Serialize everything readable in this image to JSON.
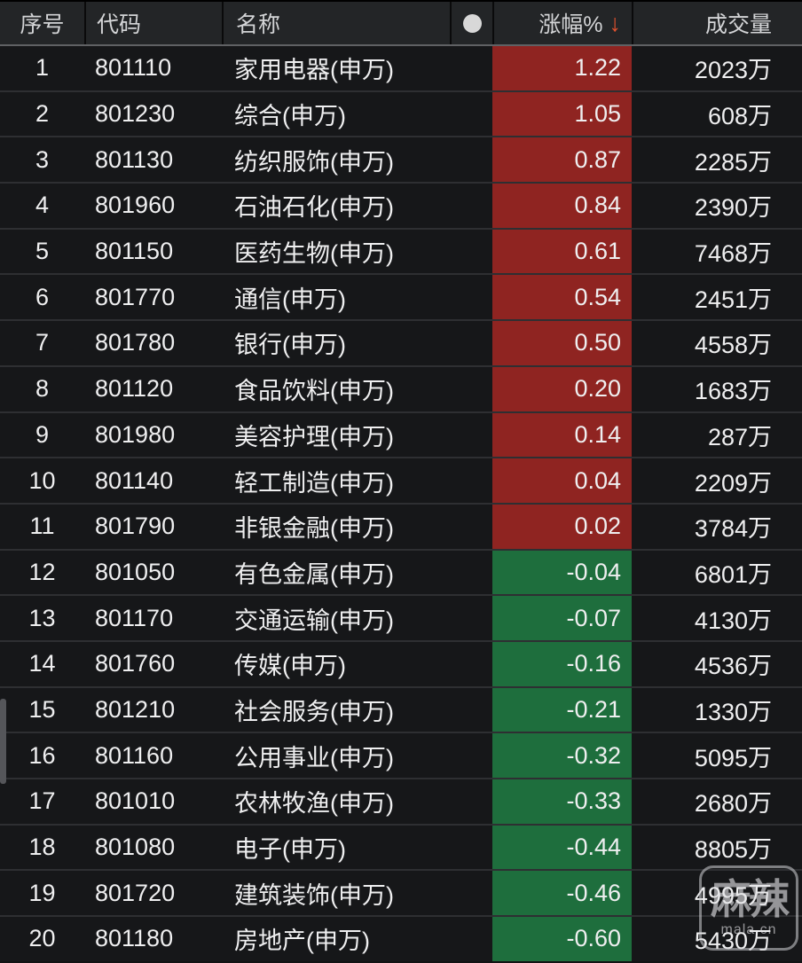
{
  "table": {
    "columns": [
      {
        "key": "seq",
        "label": "序号"
      },
      {
        "key": "code",
        "label": "代码"
      },
      {
        "key": "name",
        "label": "名称"
      },
      {
        "key": "dot",
        "label": ""
      },
      {
        "key": "change",
        "label": "涨幅%"
      },
      {
        "key": "volume",
        "label": "成交量"
      }
    ],
    "sort_icon": "↓",
    "rows": [
      {
        "seq": "1",
        "code": "801110",
        "name": "家用电器(申万)",
        "change": "1.22",
        "volume": "2023万",
        "direction": "up"
      },
      {
        "seq": "2",
        "code": "801230",
        "name": "综合(申万)",
        "change": "1.05",
        "volume": "608万",
        "direction": "up"
      },
      {
        "seq": "3",
        "code": "801130",
        "name": "纺织服饰(申万)",
        "change": "0.87",
        "volume": "2285万",
        "direction": "up"
      },
      {
        "seq": "4",
        "code": "801960",
        "name": "石油石化(申万)",
        "change": "0.84",
        "volume": "2390万",
        "direction": "up"
      },
      {
        "seq": "5",
        "code": "801150",
        "name": "医药生物(申万)",
        "change": "0.61",
        "volume": "7468万",
        "direction": "up"
      },
      {
        "seq": "6",
        "code": "801770",
        "name": "通信(申万)",
        "change": "0.54",
        "volume": "2451万",
        "direction": "up"
      },
      {
        "seq": "7",
        "code": "801780",
        "name": "银行(申万)",
        "change": "0.50",
        "volume": "4558万",
        "direction": "up"
      },
      {
        "seq": "8",
        "code": "801120",
        "name": "食品饮料(申万)",
        "change": "0.20",
        "volume": "1683万",
        "direction": "up"
      },
      {
        "seq": "9",
        "code": "801980",
        "name": "美容护理(申万)",
        "change": "0.14",
        "volume": "287万",
        "direction": "up"
      },
      {
        "seq": "10",
        "code": "801140",
        "name": "轻工制造(申万)",
        "change": "0.04",
        "volume": "2209万",
        "direction": "up"
      },
      {
        "seq": "11",
        "code": "801790",
        "name": "非银金融(申万)",
        "change": "0.02",
        "volume": "3784万",
        "direction": "up"
      },
      {
        "seq": "12",
        "code": "801050",
        "name": "有色金属(申万)",
        "change": "-0.04",
        "volume": "6801万",
        "direction": "down"
      },
      {
        "seq": "13",
        "code": "801170",
        "name": "交通运输(申万)",
        "change": "-0.07",
        "volume": "4130万",
        "direction": "down"
      },
      {
        "seq": "14",
        "code": "801760",
        "name": "传媒(申万)",
        "change": "-0.16",
        "volume": "4536万",
        "direction": "down"
      },
      {
        "seq": "15",
        "code": "801210",
        "name": "社会服务(申万)",
        "change": "-0.21",
        "volume": "1330万",
        "direction": "down"
      },
      {
        "seq": "16",
        "code": "801160",
        "name": "公用事业(申万)",
        "change": "-0.32",
        "volume": "5095万",
        "direction": "down"
      },
      {
        "seq": "17",
        "code": "801010",
        "name": "农林牧渔(申万)",
        "change": "-0.33",
        "volume": "2680万",
        "direction": "down"
      },
      {
        "seq": "18",
        "code": "801080",
        "name": "电子(申万)",
        "change": "-0.44",
        "volume": "8805万",
        "direction": "down"
      },
      {
        "seq": "19",
        "code": "801720",
        "name": "建筑装饰(申万)",
        "change": "-0.46",
        "volume": "4995万",
        "direction": "down"
      },
      {
        "seq": "20",
        "code": "801180",
        "name": "房地产(申万)",
        "change": "-0.60",
        "volume": "5430万",
        "direction": "down"
      }
    ]
  },
  "colors": {
    "up_bg": "#8f2421",
    "down_bg": "#1e6e3d",
    "sort_arrow": "#e0512e",
    "header_bg": "#232527",
    "row_bg": "#161719"
  },
  "watermark": {
    "title": "麻辣",
    "domain": "mala.cn"
  }
}
